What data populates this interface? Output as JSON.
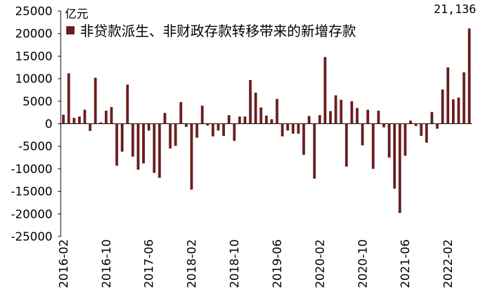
{
  "chart_data": {
    "type": "bar",
    "unit_label": "亿元",
    "legend": [
      {
        "name": "非贷款派生、非财政存款转移带来的新增存款",
        "color": "#6b1e1e"
      }
    ],
    "annotation": "21,136",
    "ylim": [
      -25000,
      25000
    ],
    "yticks": [
      "25000",
      "20000",
      "15000",
      "10000",
      "5000",
      "0",
      "-5000",
      "-10000",
      "-15000",
      "-20000",
      "-25000"
    ],
    "xtick_labels": [
      "2016-02",
      "2016-10",
      "2017-06",
      "2018-02",
      "2018-10",
      "2019-06",
      "2020-02",
      "2020-10",
      "2021-06",
      "2022-02"
    ],
    "series": [
      {
        "name": "非贷款派生、非财政存款转移带来的新增存款",
        "color": "#6b1e1e",
        "x": [
          "2016-02",
          "2016-03",
          "2016-04",
          "2016-05",
          "2016-06",
          "2016-07",
          "2016-08",
          "2016-09",
          "2016-10",
          "2016-11",
          "2016-12",
          "2017-01",
          "2017-02",
          "2017-03",
          "2017-04",
          "2017-05",
          "2017-06",
          "2017-07",
          "2017-08",
          "2017-09",
          "2017-10",
          "2017-11",
          "2017-12",
          "2018-01",
          "2018-02",
          "2018-03",
          "2018-04",
          "2018-05",
          "2018-06",
          "2018-07",
          "2018-08",
          "2018-09",
          "2018-10",
          "2018-11",
          "2018-12",
          "2019-01",
          "2019-02",
          "2019-03",
          "2019-04",
          "2019-05",
          "2019-06",
          "2019-07",
          "2019-08",
          "2019-09",
          "2019-10",
          "2019-11",
          "2019-12",
          "2020-01",
          "2020-02",
          "2020-03",
          "2020-04",
          "2020-05",
          "2020-06",
          "2020-07",
          "2020-08",
          "2020-09",
          "2020-10",
          "2020-11",
          "2020-12",
          "2021-01",
          "2021-02",
          "2021-03",
          "2021-04",
          "2021-05",
          "2021-06",
          "2021-07",
          "2021-08",
          "2021-09",
          "2021-10",
          "2021-11",
          "2021-12",
          "2022-01",
          "2022-02",
          "2022-03",
          "2022-04",
          "2022-05",
          "2022-06"
        ],
        "values": [
          2000,
          11200,
          1300,
          1600,
          3100,
          -1600,
          10200,
          300,
          2900,
          3700,
          -9300,
          -6200,
          8700,
          -7300,
          -10200,
          -8800,
          -1500,
          -10900,
          -12000,
          2400,
          -5500,
          -4900,
          4800,
          -700,
          -14600,
          -3100,
          4000,
          -400,
          -2800,
          -1500,
          -2700,
          1900,
          -3800,
          1600,
          1600,
          9700,
          6900,
          3600,
          1800,
          1000,
          5500,
          -2800,
          -1500,
          -2200,
          -2200,
          -6900,
          1700,
          -12200,
          1900,
          14800,
          2800,
          6300,
          5300,
          -9500,
          5000,
          3500,
          -4800,
          3100,
          -10000,
          2900,
          -800,
          -7500,
          -14400,
          -19800,
          -7100,
          700,
          -500,
          -2700,
          -4200,
          2600,
          -1100,
          7600,
          12500,
          5400,
          5800,
          11400,
          21136
        ]
      }
    ]
  }
}
